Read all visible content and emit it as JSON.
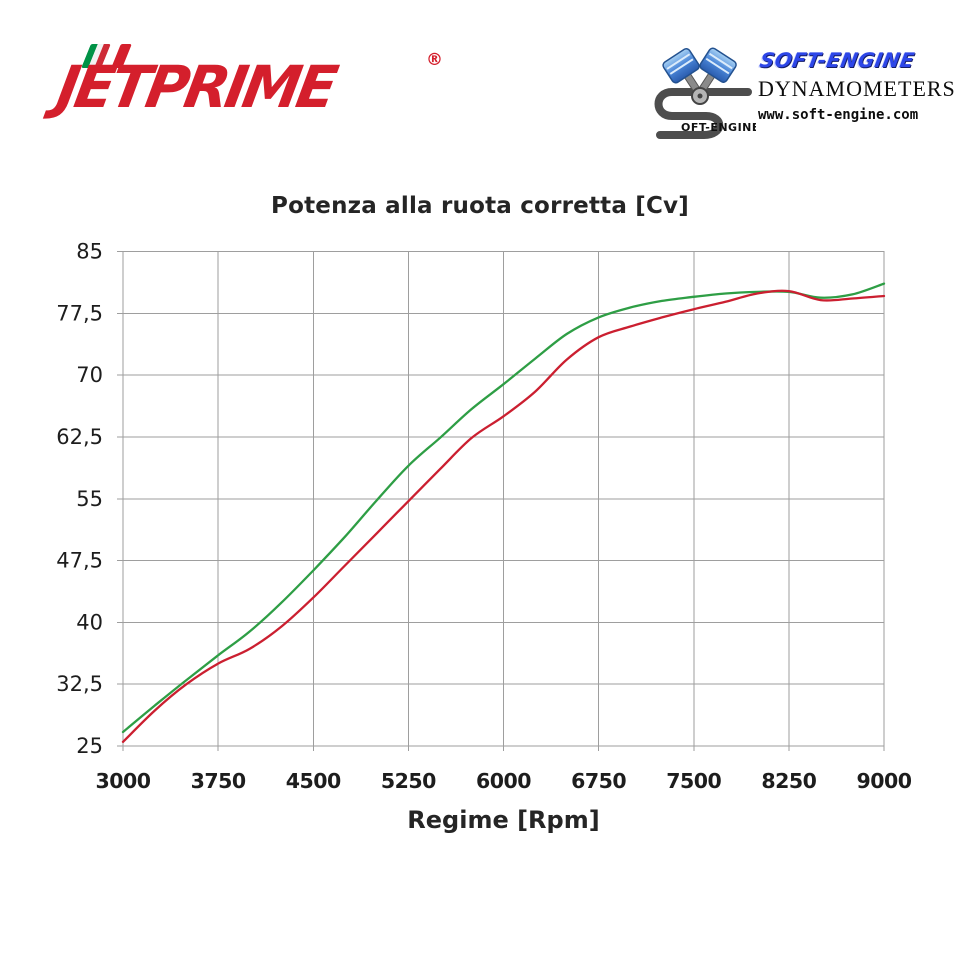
{
  "header": {
    "jetprime": {
      "jet": "JET",
      "prime": "PRIME",
      "registered": "®",
      "brand_red": "#d41f2c",
      "flag_colors": [
        "#009246",
        "#f2f2f2",
        "#ce2b37"
      ]
    },
    "softengine": {
      "icon": "pistons-s-logo",
      "s_text": "OFT-ENGINE",
      "brand": "SOFT-ENGINE",
      "line2": "DYNAMOMETERS",
      "line3": "www.soft-engine.com",
      "brand_blue": "#2d46e8"
    }
  },
  "chart_data": {
    "type": "line",
    "title": "Potenza alla ruota corretta [Cv]",
    "xlabel": "Regime [Rpm]",
    "ylabel": "",
    "xlim": [
      3000,
      9000
    ],
    "ylim": [
      25,
      85
    ],
    "grid": true,
    "legend": "none",
    "x_ticks": [
      3000,
      3750,
      4500,
      5250,
      6000,
      6750,
      7500,
      8250,
      9000
    ],
    "y_ticks": [
      25,
      32.5,
      40,
      47.5,
      55,
      62.5,
      70,
      77.5,
      85
    ],
    "y_tick_labels": [
      "25",
      "32,5",
      "40",
      "47,5",
      "55",
      "62,5",
      "70",
      "77,5",
      "85"
    ],
    "x": [
      3000,
      3250,
      3500,
      3750,
      4000,
      4250,
      4500,
      4750,
      5000,
      5250,
      5500,
      5750,
      6000,
      6250,
      6500,
      6750,
      7000,
      7250,
      7500,
      7750,
      8000,
      8250,
      8500,
      8750,
      9000
    ],
    "series": [
      {
        "name": "potenza-curva-verde",
        "color": "#2e9e45",
        "values": [
          26.7,
          29.9,
          33.0,
          36.0,
          38.9,
          42.4,
          46.3,
          50.4,
          54.8,
          59.0,
          62.4,
          65.9,
          68.9,
          72.0,
          75.0,
          77.0,
          78.2,
          79.0,
          79.5,
          79.9,
          80.1,
          80.1,
          79.4,
          79.8,
          81.1
        ]
      },
      {
        "name": "potenza-curva-rossa",
        "color": "#cb1f30",
        "values": [
          25.5,
          29.3,
          32.5,
          35.0,
          36.8,
          39.5,
          43.0,
          46.9,
          50.8,
          54.7,
          58.6,
          62.4,
          65.0,
          68.0,
          71.9,
          74.6,
          75.9,
          77.0,
          78.0,
          78.9,
          79.9,
          80.2,
          79.1,
          79.3,
          79.6
        ]
      }
    ]
  },
  "colors": {
    "background": "#ffffff",
    "grid": "#9e9e9e",
    "text": "#1d1d1d"
  }
}
